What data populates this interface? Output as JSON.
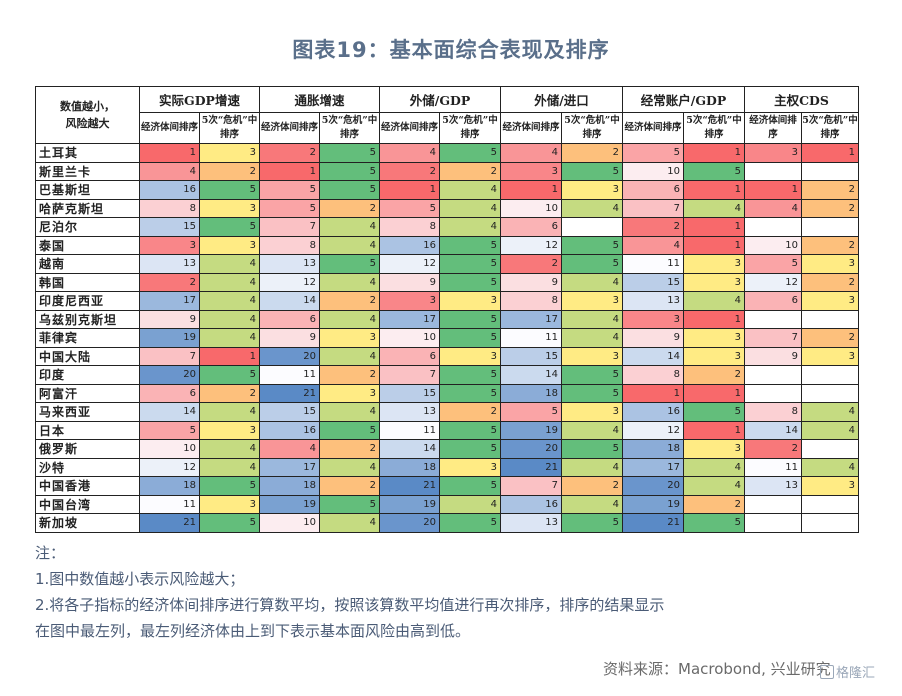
{
  "title": "图表19：基本面综合表现及排序",
  "corner_label_1": "数值越小，",
  "corner_label_2": "风险越大",
  "groups": [
    "实际GDP增速",
    "通胀增速",
    "外储/GDP",
    "外储/进口",
    "经常账户/GDP",
    "主权CDS"
  ],
  "sub_headers": [
    "经济体间排序",
    "5次“危机”中排序"
  ],
  "rows": [
    {
      "name": "土耳其",
      "vals": [
        "1",
        "3",
        "2",
        "5",
        "4",
        "5",
        "4",
        "2",
        "5",
        "1",
        "3",
        "1"
      ]
    },
    {
      "name": "斯里兰卡",
      "vals": [
        "4",
        "2",
        "1",
        "5",
        "2",
        "2",
        "3",
        "5",
        "10",
        "5",
        "",
        ""
      ]
    },
    {
      "name": "巴基斯坦",
      "vals": [
        "16",
        "5",
        "5",
        "5",
        "1",
        "4",
        "1",
        "3",
        "6",
        "1",
        "1",
        "2"
      ]
    },
    {
      "name": "哈萨克斯坦",
      "vals": [
        "8",
        "3",
        "5",
        "2",
        "5",
        "4",
        "10",
        "4",
        "7",
        "4",
        "4",
        "2"
      ]
    },
    {
      "name": "尼泊尔",
      "vals": [
        "15",
        "5",
        "7",
        "4",
        "8",
        "4",
        "6",
        "",
        "2",
        "1",
        "",
        ""
      ]
    },
    {
      "name": "泰国",
      "vals": [
        "3",
        "3",
        "8",
        "4",
        "16",
        "5",
        "12",
        "5",
        "4",
        "1",
        "10",
        "2"
      ]
    },
    {
      "name": "越南",
      "vals": [
        "13",
        "4",
        "13",
        "5",
        "12",
        "5",
        "2",
        "5",
        "11",
        "3",
        "5",
        "3"
      ]
    },
    {
      "name": "韩国",
      "vals": [
        "2",
        "4",
        "12",
        "4",
        "9",
        "5",
        "9",
        "4",
        "15",
        "3",
        "12",
        "2"
      ]
    },
    {
      "name": "印度尼西亚",
      "vals": [
        "17",
        "4",
        "14",
        "2",
        "3",
        "3",
        "8",
        "3",
        "13",
        "4",
        "6",
        "3"
      ]
    },
    {
      "name": "乌兹别克斯坦",
      "vals": [
        "9",
        "4",
        "6",
        "4",
        "17",
        "5",
        "17",
        "4",
        "3",
        "1",
        "",
        ""
      ]
    },
    {
      "name": "菲律宾",
      "vals": [
        "19",
        "4",
        "9",
        "3",
        "10",
        "5",
        "11",
        "4",
        "9",
        "3",
        "7",
        "2"
      ]
    },
    {
      "name": "中国大陆",
      "vals": [
        "7",
        "1",
        "20",
        "4",
        "6",
        "3",
        "15",
        "3",
        "14",
        "3",
        "9",
        "3"
      ]
    },
    {
      "name": "印度",
      "vals": [
        "20",
        "5",
        "11",
        "2",
        "7",
        "5",
        "14",
        "5",
        "8",
        "2",
        "",
        ""
      ]
    },
    {
      "name": "阿富汗",
      "vals": [
        "6",
        "2",
        "21",
        "3",
        "15",
        "5",
        "18",
        "5",
        "1",
        "1",
        "",
        ""
      ]
    },
    {
      "name": "马来西亚",
      "vals": [
        "14",
        "4",
        "15",
        "4",
        "13",
        "2",
        "5",
        "3",
        "16",
        "5",
        "8",
        "4"
      ]
    },
    {
      "name": "日本",
      "vals": [
        "5",
        "3",
        "16",
        "5",
        "11",
        "5",
        "19",
        "4",
        "12",
        "1",
        "14",
        "4"
      ]
    },
    {
      "name": "俄罗斯",
      "vals": [
        "10",
        "4",
        "4",
        "2",
        "14",
        "5",
        "20",
        "5",
        "18",
        "3",
        "2",
        ""
      ]
    },
    {
      "name": "沙特",
      "vals": [
        "12",
        "4",
        "17",
        "4",
        "18",
        "3",
        "21",
        "4",
        "17",
        "4",
        "11",
        "4"
      ]
    },
    {
      "name": "中国香港",
      "vals": [
        "18",
        "5",
        "18",
        "2",
        "21",
        "5",
        "7",
        "2",
        "20",
        "4",
        "13",
        "3"
      ]
    },
    {
      "name": "中国台湾",
      "vals": [
        "11",
        "3",
        "19",
        "5",
        "19",
        "4",
        "16",
        "4",
        "19",
        "2",
        "",
        ""
      ]
    },
    {
      "name": "新加坡",
      "vals": [
        "21",
        "5",
        "10",
        "4",
        "20",
        "5",
        "13",
        "5",
        "21",
        "5",
        "",
        ""
      ]
    }
  ],
  "notes": {
    "label": "注：",
    "line1": "1.图中数值越小表示风险越大；",
    "line2": "2.将各子指标的经济体间排序进行算数平均，按照该算数平均值进行再次排序，排序的结果显示",
    "line3": "在图中最左列，最左列经济体由上到下表示基本面风险由高到低。"
  },
  "source": "资料来源：Macrobond, 兴业研究",
  "watermark": "格隆汇",
  "colors": {
    "rank_scale_1_to_21": [
      "#f8696b",
      "#f98370",
      "#fa9d75",
      "#fcb77a",
      "#fdd17f",
      "#ffeb84",
      "#e0e383",
      "#c1da81",
      "#a2d07f",
      "#83c77d",
      "#63be7b"
    ],
    "crisis_scale_1_to_5": [
      "#f8696b",
      "#fdc07c",
      "#ffeb84",
      "#c5db81",
      "#63be7b"
    ],
    "blue_scale_note": "经济体间排序使用 红-白-蓝 渐变；5次危机排序使用 红-黄-绿 渐变",
    "rank_red": "#f8696b",
    "rank_white": "#fcfcff",
    "rank_blue": "#5a8ac6"
  }
}
